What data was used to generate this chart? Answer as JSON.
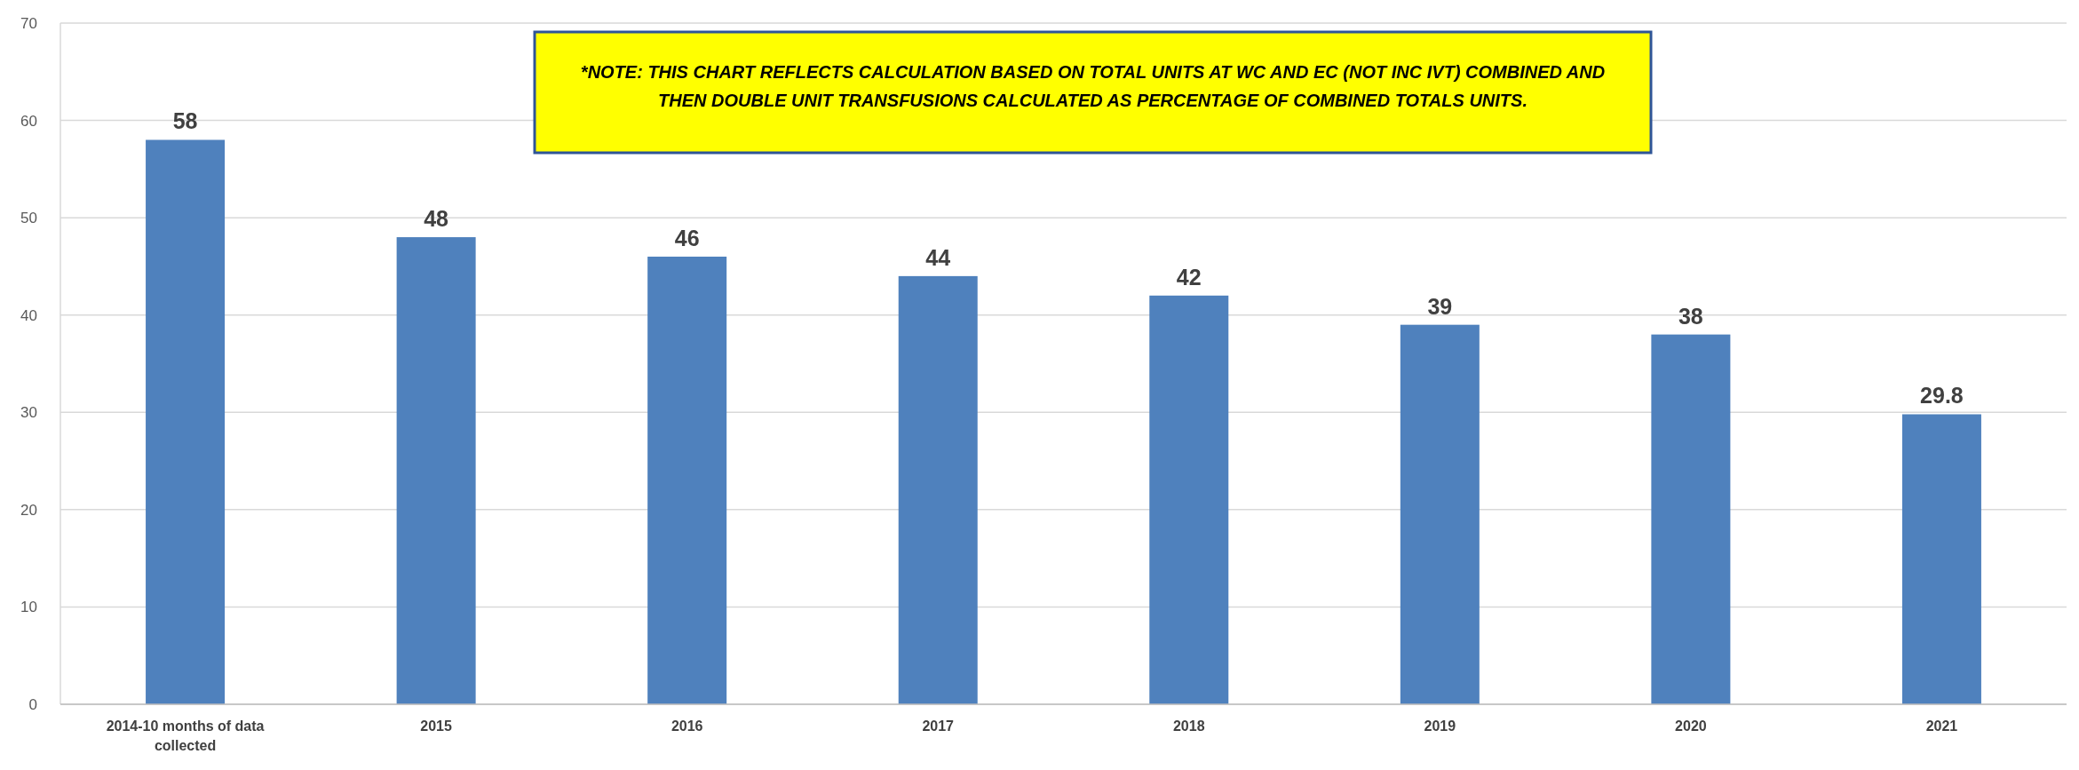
{
  "chart_data": {
    "type": "bar",
    "categories": [
      "2014-10 months of data collected",
      "2015",
      "2016",
      "2017",
      "2018",
      "2019",
      "2020",
      "2021"
    ],
    "values": [
      58,
      48,
      46,
      44,
      42,
      39,
      38,
      29.8
    ],
    "color": "#4f81bd",
    "ylim": [
      0,
      70
    ],
    "yticks": [
      0,
      10,
      20,
      30,
      40,
      50,
      60,
      70
    ],
    "grid": "y",
    "data_labels": true,
    "annotations": [
      "*NOTE:  THIS CHART REFLECTS CALCULATION BASED ON TOTAL UNITS AT WC AND EC (NOT INC IVT) COMBINED AND THEN DOUBLE UNIT TRANSFUSIONS CALCULATED AS PERCENTAGE OF COMBINED TOTALS UNITS."
    ]
  }
}
